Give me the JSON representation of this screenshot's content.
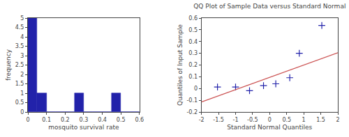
{
  "chart_data": [
    {
      "type": "histogram",
      "bins": [
        0,
        0.05,
        0.1,
        0.15,
        0.2,
        0.25,
        0.3,
        0.35,
        0.4,
        0.45,
        0.5,
        0.55,
        0.6
      ],
      "values": [
        5,
        1,
        0,
        0,
        0,
        1,
        0,
        0,
        0,
        1,
        0,
        0
      ],
      "color": "#2222aa",
      "x_label": "mosquito survival rate",
      "y_label": "frequency",
      "xlim": [
        0,
        0.6
      ],
      "ylim": [
        0,
        5
      ],
      "xticks": [
        0,
        0.1,
        0.2,
        0.3,
        0.4,
        0.5,
        0.6
      ],
      "yticks": [
        0,
        0.5,
        1,
        1.5,
        2,
        2.5,
        3,
        3.5,
        4,
        4.5,
        5
      ],
      "grid": false
    },
    {
      "type": "scatter",
      "title": "QQ Plot of Sample Data versus Standard Normal",
      "x_label": "Standard Normal Quantiles",
      "y_label": "Quantiles of Input Sample",
      "series": [
        {
          "type": "scatter",
          "marker": "plus",
          "color": "#2222aa",
          "x": [
            -1.53,
            -1.0,
            -0.59,
            -0.18,
            0.18,
            0.59,
            0.87,
            1.53
          ],
          "values": [
            0.013,
            0.013,
            -0.018,
            0.025,
            0.04,
            0.092,
            0.3,
            0.537
          ]
        },
        {
          "type": "line",
          "line_style": "solid",
          "color": "#cc5555",
          "x": [
            -2.0,
            2.0
          ],
          "values": [
            -0.115,
            0.305
          ]
        }
      ],
      "xlim": [
        -2,
        2
      ],
      "ylim": [
        -0.2,
        0.6
      ],
      "xticks": [
        -2,
        -1.5,
        -1,
        -0.5,
        0,
        0.5,
        1,
        1.5,
        2
      ],
      "yticks": [
        -0.2,
        -0.1,
        0,
        0.1,
        0.2,
        0.3,
        0.4,
        0.5,
        0.6
      ],
      "grid": false
    }
  ]
}
